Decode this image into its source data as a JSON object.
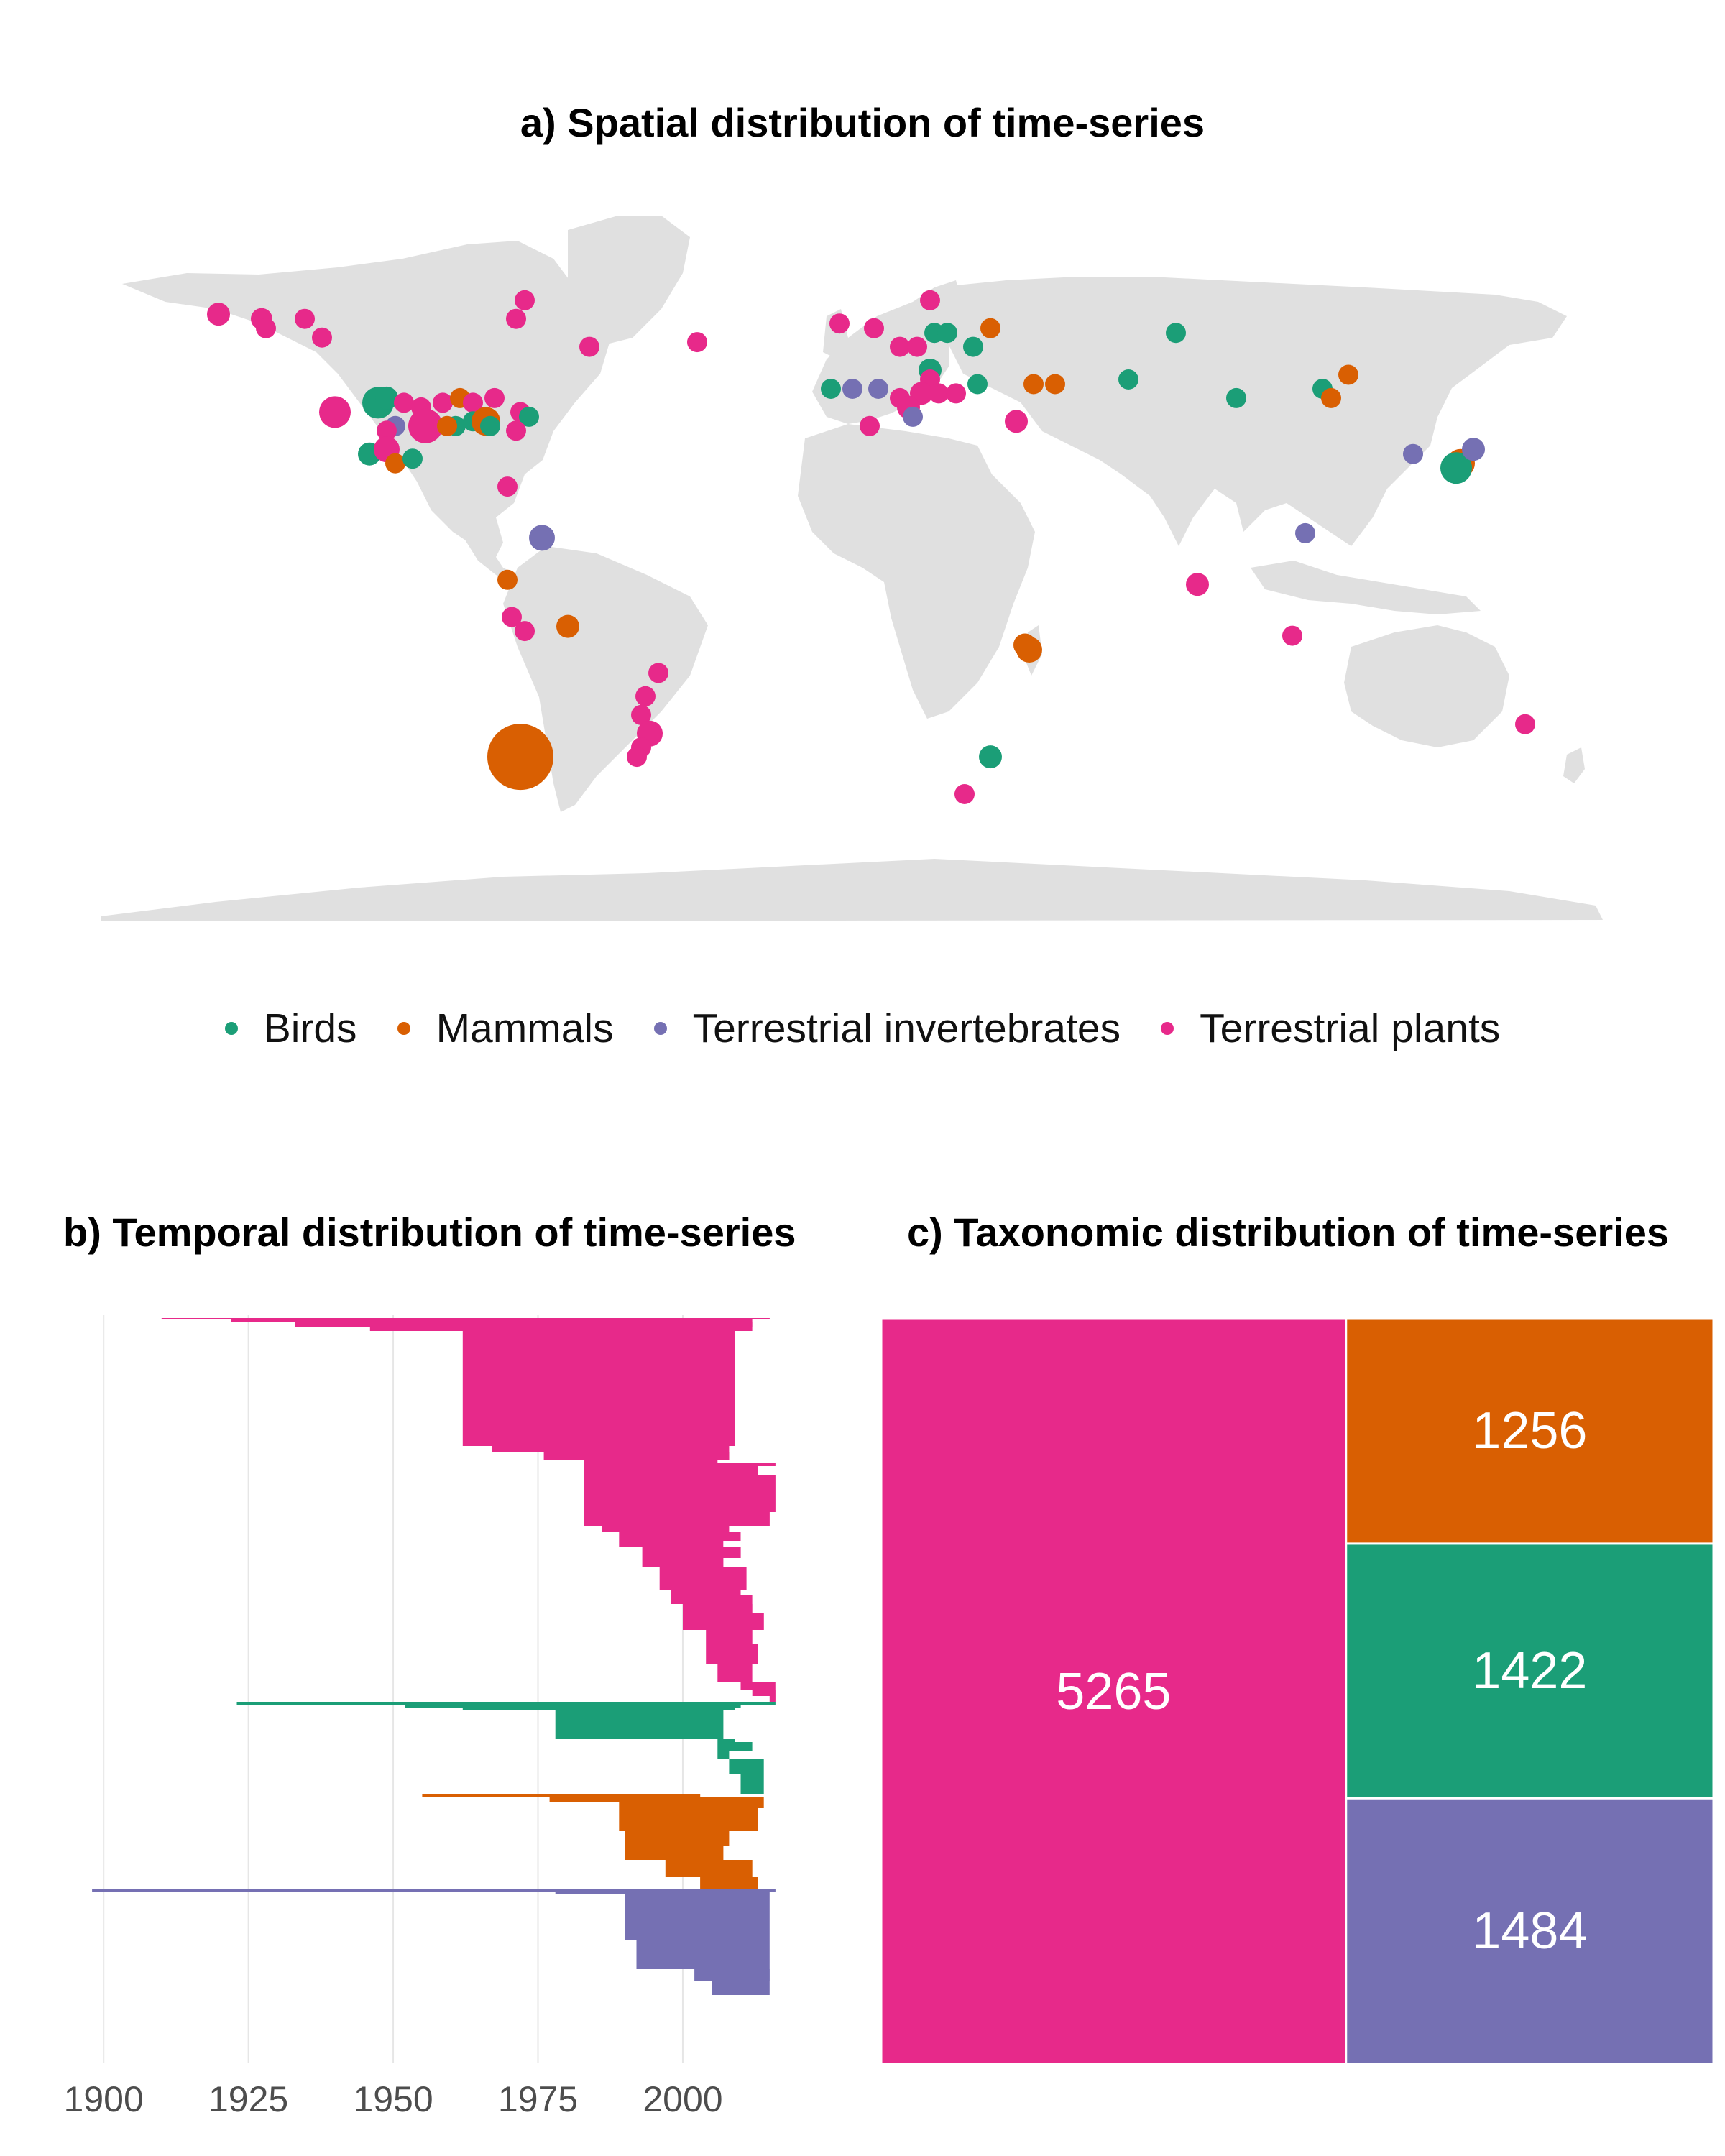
{
  "colors": {
    "Birds": "#1b9e77",
    "Mammals": "#d95f02",
    "Terrestrial invertebrates": "#7570b3",
    "Terrestrial plants": "#e7298a",
    "land": "#e0e0e0",
    "grid": "#e6e6e6"
  },
  "legend": {
    "items": [
      {
        "label": "Birds",
        "key": "Birds"
      },
      {
        "label": "Mammals",
        "key": "Mammals"
      },
      {
        "label": "Terrestrial invertebrates",
        "key": "Terrestrial invertebrates"
      },
      {
        "label": "Terrestrial plants",
        "key": "Terrestrial plants"
      }
    ]
  },
  "chart_data": [
    {
      "type": "scatter",
      "title": "a) Spatial distribution of time-series",
      "xlabel": "",
      "ylabel": "",
      "xlim": [
        -180,
        180
      ],
      "ylim": [
        -60,
        85
      ],
      "points": [
        {
          "lon": -151,
          "lat": 70,
          "cat": "Terrestrial plants",
          "r": 16
        },
        {
          "lon": -141,
          "lat": 69,
          "cat": "Terrestrial plants",
          "r": 15
        },
        {
          "lon": -140,
          "lat": 67,
          "cat": "Terrestrial plants",
          "r": 14
        },
        {
          "lon": -131,
          "lat": 69,
          "cat": "Terrestrial plants",
          "r": 14
        },
        {
          "lon": -127,
          "lat": 65,
          "cat": "Terrestrial plants",
          "r": 14
        },
        {
          "lon": -80,
          "lat": 73,
          "cat": "Terrestrial plants",
          "r": 14
        },
        {
          "lon": -82,
          "lat": 69,
          "cat": "Terrestrial plants",
          "r": 14
        },
        {
          "lon": -65,
          "lat": 63,
          "cat": "Terrestrial plants",
          "r": 14
        },
        {
          "lon": -124,
          "lat": 49,
          "cat": "Terrestrial plants",
          "r": 22
        },
        {
          "lon": -114,
          "lat": 51,
          "cat": "Birds",
          "r": 22
        },
        {
          "lon": -112,
          "lat": 52,
          "cat": "Birds",
          "r": 16
        },
        {
          "lon": -108,
          "lat": 51,
          "cat": "Terrestrial plants",
          "r": 14
        },
        {
          "lon": -104,
          "lat": 50,
          "cat": "Terrestrial plants",
          "r": 14
        },
        {
          "lon": -99,
          "lat": 51,
          "cat": "Terrestrial plants",
          "r": 14
        },
        {
          "lon": -95,
          "lat": 52,
          "cat": "Mammals",
          "r": 14
        },
        {
          "lon": -92,
          "lat": 51,
          "cat": "Terrestrial plants",
          "r": 14
        },
        {
          "lon": -87,
          "lat": 52,
          "cat": "Terrestrial plants",
          "r": 14
        },
        {
          "lon": -110,
          "lat": 46,
          "cat": "Terrestrial invertebrates",
          "r": 14
        },
        {
          "lon": -112,
          "lat": 45,
          "cat": "Terrestrial plants",
          "r": 14
        },
        {
          "lon": -103,
          "lat": 46,
          "cat": "Terrestrial plants",
          "r": 24
        },
        {
          "lon": -96,
          "lat": 46,
          "cat": "Birds",
          "r": 14
        },
        {
          "lon": -92,
          "lat": 47,
          "cat": "Birds",
          "r": 14
        },
        {
          "lon": -89,
          "lat": 47,
          "cat": "Mammals",
          "r": 20
        },
        {
          "lon": -88,
          "lat": 46,
          "cat": "Birds",
          "r": 14
        },
        {
          "lon": -81,
          "lat": 49,
          "cat": "Terrestrial plants",
          "r": 14
        },
        {
          "lon": -79,
          "lat": 48,
          "cat": "Birds",
          "r": 14
        },
        {
          "lon": -82,
          "lat": 45,
          "cat": "Terrestrial plants",
          "r": 14
        },
        {
          "lon": -116,
          "lat": 40,
          "cat": "Birds",
          "r": 16
        },
        {
          "lon": -112,
          "lat": 41,
          "cat": "Terrestrial plants",
          "r": 18
        },
        {
          "lon": -110,
          "lat": 38,
          "cat": "Mammals",
          "r": 14
        },
        {
          "lon": -106,
          "lat": 39,
          "cat": "Birds",
          "r": 14
        },
        {
          "lon": -98,
          "lat": 46,
          "cat": "Mammals",
          "r": 14
        },
        {
          "lon": -84,
          "lat": 33,
          "cat": "Terrestrial plants",
          "r": 14
        },
        {
          "lon": -76,
          "lat": 22,
          "cat": "Terrestrial invertebrates",
          "r": 18
        },
        {
          "lon": -84,
          "lat": 13,
          "cat": "Mammals",
          "r": 14
        },
        {
          "lon": -83,
          "lat": 5,
          "cat": "Terrestrial plants",
          "r": 14
        },
        {
          "lon": -80,
          "lat": 2,
          "cat": "Terrestrial plants",
          "r": 14
        },
        {
          "lon": -70,
          "lat": 3,
          "cat": "Mammals",
          "r": 16
        },
        {
          "lon": -49,
          "lat": -7,
          "cat": "Terrestrial plants",
          "r": 14
        },
        {
          "lon": -52,
          "lat": -12,
          "cat": "Terrestrial plants",
          "r": 14
        },
        {
          "lon": -53,
          "lat": -16,
          "cat": "Terrestrial plants",
          "r": 14
        },
        {
          "lon": -51,
          "lat": -20,
          "cat": "Terrestrial plants",
          "r": 18
        },
        {
          "lon": -53,
          "lat": -23,
          "cat": "Terrestrial plants",
          "r": 14
        },
        {
          "lon": -54,
          "lat": -25,
          "cat": "Terrestrial plants",
          "r": 14
        },
        {
          "lon": -81,
          "lat": -25,
          "cat": "Mammals",
          "r": 46
        },
        {
          "lon": -40,
          "lat": 64,
          "cat": "Terrestrial plants",
          "r": 14
        },
        {
          "lon": -7,
          "lat": 68,
          "cat": "Terrestrial plants",
          "r": 14
        },
        {
          "lon": 1,
          "lat": 67,
          "cat": "Terrestrial plants",
          "r": 14
        },
        {
          "lon": 7,
          "lat": 63,
          "cat": "Terrestrial plants",
          "r": 14
        },
        {
          "lon": 11,
          "lat": 63,
          "cat": "Terrestrial plants",
          "r": 14
        },
        {
          "lon": 14,
          "lat": 73,
          "cat": "Terrestrial plants",
          "r": 14
        },
        {
          "lon": 15,
          "lat": 66,
          "cat": "Birds",
          "r": 14
        },
        {
          "lon": 18,
          "lat": 66,
          "cat": "Birds",
          "r": 14
        },
        {
          "lon": 28,
          "lat": 67,
          "cat": "Mammals",
          "r": 14
        },
        {
          "lon": 24,
          "lat": 63,
          "cat": "Birds",
          "r": 14
        },
        {
          "lon": 14,
          "lat": 58,
          "cat": "Birds",
          "r": 16
        },
        {
          "lon": 14,
          "lat": 56,
          "cat": "Terrestrial plants",
          "r": 14
        },
        {
          "lon": -9,
          "lat": 54,
          "cat": "Birds",
          "r": 14
        },
        {
          "lon": -4,
          "lat": 54,
          "cat": "Terrestrial invertebrates",
          "r": 14
        },
        {
          "lon": 2,
          "lat": 54,
          "cat": "Terrestrial invertebrates",
          "r": 14
        },
        {
          "lon": 7,
          "lat": 52,
          "cat": "Terrestrial plants",
          "r": 14
        },
        {
          "lon": 12,
          "lat": 53,
          "cat": "Terrestrial plants",
          "r": 16
        },
        {
          "lon": 16,
          "lat": 53,
          "cat": "Terrestrial plants",
          "r": 14
        },
        {
          "lon": 20,
          "lat": 53,
          "cat": "Terrestrial plants",
          "r": 14
        },
        {
          "lon": 25,
          "lat": 55,
          "cat": "Birds",
          "r": 14
        },
        {
          "lon": 9,
          "lat": 50,
          "cat": "Terrestrial plants",
          "r": 16
        },
        {
          "lon": 10,
          "lat": 48,
          "cat": "Terrestrial invertebrates",
          "r": 14
        },
        {
          "lon": 0,
          "lat": 46,
          "cat": "Terrestrial plants",
          "r": 14
        },
        {
          "lon": 38,
          "lat": 55,
          "cat": "Mammals",
          "r": 14
        },
        {
          "lon": 43,
          "lat": 55,
          "cat": "Mammals",
          "r": 14
        },
        {
          "lon": 60,
          "lat": 56,
          "cat": "Birds",
          "r": 14
        },
        {
          "lon": 71,
          "lat": 66,
          "cat": "Birds",
          "r": 14
        },
        {
          "lon": 34,
          "lat": 47,
          "cat": "Terrestrial plants",
          "r": 16
        },
        {
          "lon": 85,
          "lat": 52,
          "cat": "Birds",
          "r": 14
        },
        {
          "lon": 105,
          "lat": 54,
          "cat": "Birds",
          "r": 14
        },
        {
          "lon": 107,
          "lat": 52,
          "cat": "Mammals",
          "r": 14
        },
        {
          "lon": 111,
          "lat": 57,
          "cat": "Mammals",
          "r": 14
        },
        {
          "lon": 126,
          "lat": 40,
          "cat": "Terrestrial invertebrates",
          "r": 14
        },
        {
          "lon": 137,
          "lat": 38,
          "cat": "Mammals",
          "r": 20
        },
        {
          "lon": 136,
          "lat": 37,
          "cat": "Birds",
          "r": 22
        },
        {
          "lon": 140,
          "lat": 41,
          "cat": "Terrestrial invertebrates",
          "r": 16
        },
        {
          "lon": 101,
          "lat": 23,
          "cat": "Terrestrial invertebrates",
          "r": 14
        },
        {
          "lon": 76,
          "lat": 12,
          "cat": "Terrestrial plants",
          "r": 16
        },
        {
          "lon": 98,
          "lat": 1,
          "cat": "Terrestrial plants",
          "r": 14
        },
        {
          "lon": 36,
          "lat": -1,
          "cat": "Mammals",
          "r": 16
        },
        {
          "lon": 37,
          "lat": -2,
          "cat": "Mammals",
          "r": 18
        },
        {
          "lon": 28,
          "lat": -25,
          "cat": "Birds",
          "r": 16
        },
        {
          "lon": 22,
          "lat": -33,
          "cat": "Terrestrial plants",
          "r": 14
        },
        {
          "lon": 152,
          "lat": -18,
          "cat": "Terrestrial plants",
          "r": 14
        }
      ]
    },
    {
      "type": "bar",
      "title": "b) Temporal distribution of time-series",
      "xlabel": "",
      "ylabel": "",
      "xlim": [
        1897,
        2018
      ],
      "x_ticks": [
        "1900",
        "1925",
        "1950",
        "1975",
        "2000"
      ],
      "tick_values": [
        1900,
        1925,
        1950,
        1975,
        2000
      ],
      "groups": [
        {
          "cat": "Terrestrial plants",
          "rows": [
            [
              1910,
              2015,
              1
            ],
            [
              1922,
              2012,
              2
            ],
            [
              1933,
              2012,
              3
            ],
            [
              1946,
              2012,
              3
            ],
            [
              1962,
              2009,
              80
            ],
            [
              1967,
              2008,
              4
            ],
            [
              1976,
              2008,
              6
            ],
            [
              1983,
              2006,
              2
            ],
            [
              1983,
              2016,
              2
            ],
            [
              1983,
              2013,
              6
            ],
            [
              1983,
              2016,
              26
            ],
            [
              1983,
              2015,
              2
            ],
            [
              1983,
              2015,
              8
            ],
            [
              1986,
              2008,
              4
            ],
            [
              1989,
              2010,
              6
            ],
            [
              1989,
              2007,
              4
            ],
            [
              1993,
              2010,
              8
            ],
            [
              1993,
              2007,
              6
            ],
            [
              1996,
              2011,
              16
            ],
            [
              1998,
              2010,
              4
            ],
            [
              1998,
              2012,
              6
            ],
            [
              2000,
              2012,
              6
            ],
            [
              2000,
              2014,
              12
            ],
            [
              2004,
              2012,
              10
            ],
            [
              2004,
              2013,
              14
            ],
            [
              2006,
              2012,
              12
            ],
            [
              2010,
              2016,
              6
            ],
            [
              2012,
              2016,
              4
            ],
            [
              2015,
              2016,
              4
            ]
          ]
        },
        {
          "cat": "Birds",
          "rows": [
            [
              1923,
              2016,
              2
            ],
            [
              1952,
              2010,
              2
            ],
            [
              1962,
              2009,
              2
            ],
            [
              1978,
              2007,
              20
            ],
            [
              2006,
              2009,
              2
            ],
            [
              2006,
              2012,
              6
            ],
            [
              2006,
              2008,
              6
            ],
            [
              2008,
              2014,
              10
            ],
            [
              2010,
              2014,
              14
            ]
          ]
        },
        {
          "cat": "Mammals",
          "rows": [
            [
              1955,
              2003,
              2
            ],
            [
              1977,
              2014,
              4
            ],
            [
              1989,
              2014,
              4
            ],
            [
              1989,
              2013,
              16
            ],
            [
              1990,
              2008,
              10
            ],
            [
              1990,
              2007,
              10
            ],
            [
              1997,
              2012,
              12
            ],
            [
              2003,
              2013,
              8
            ]
          ]
        },
        {
          "cat": "Terrestrial invertebrates",
          "rows": [
            [
              1898,
              2016,
              2
            ],
            [
              1978,
              2015,
              2
            ],
            [
              1990,
              2015,
              4
            ],
            [
              1990,
              2015,
              28
            ],
            [
              1992,
              2015,
              8
            ],
            [
              1992,
              2015,
              12
            ],
            [
              2002,
              2015,
              8
            ],
            [
              2005,
              2015,
              10
            ]
          ]
        }
      ]
    },
    {
      "type": "treemap",
      "title": "c) Taxonomic distribution of time-series",
      "xlabel": "",
      "ylabel": "",
      "tiles": [
        {
          "cat": "Terrestrial plants",
          "value": 5265,
          "label": "5265"
        },
        {
          "cat": "Mammals",
          "value": 1256,
          "label": "1256"
        },
        {
          "cat": "Birds",
          "value": 1422,
          "label": "1422"
        },
        {
          "cat": "Terrestrial invertebrates",
          "value": 1484,
          "label": "1484"
        }
      ]
    }
  ]
}
